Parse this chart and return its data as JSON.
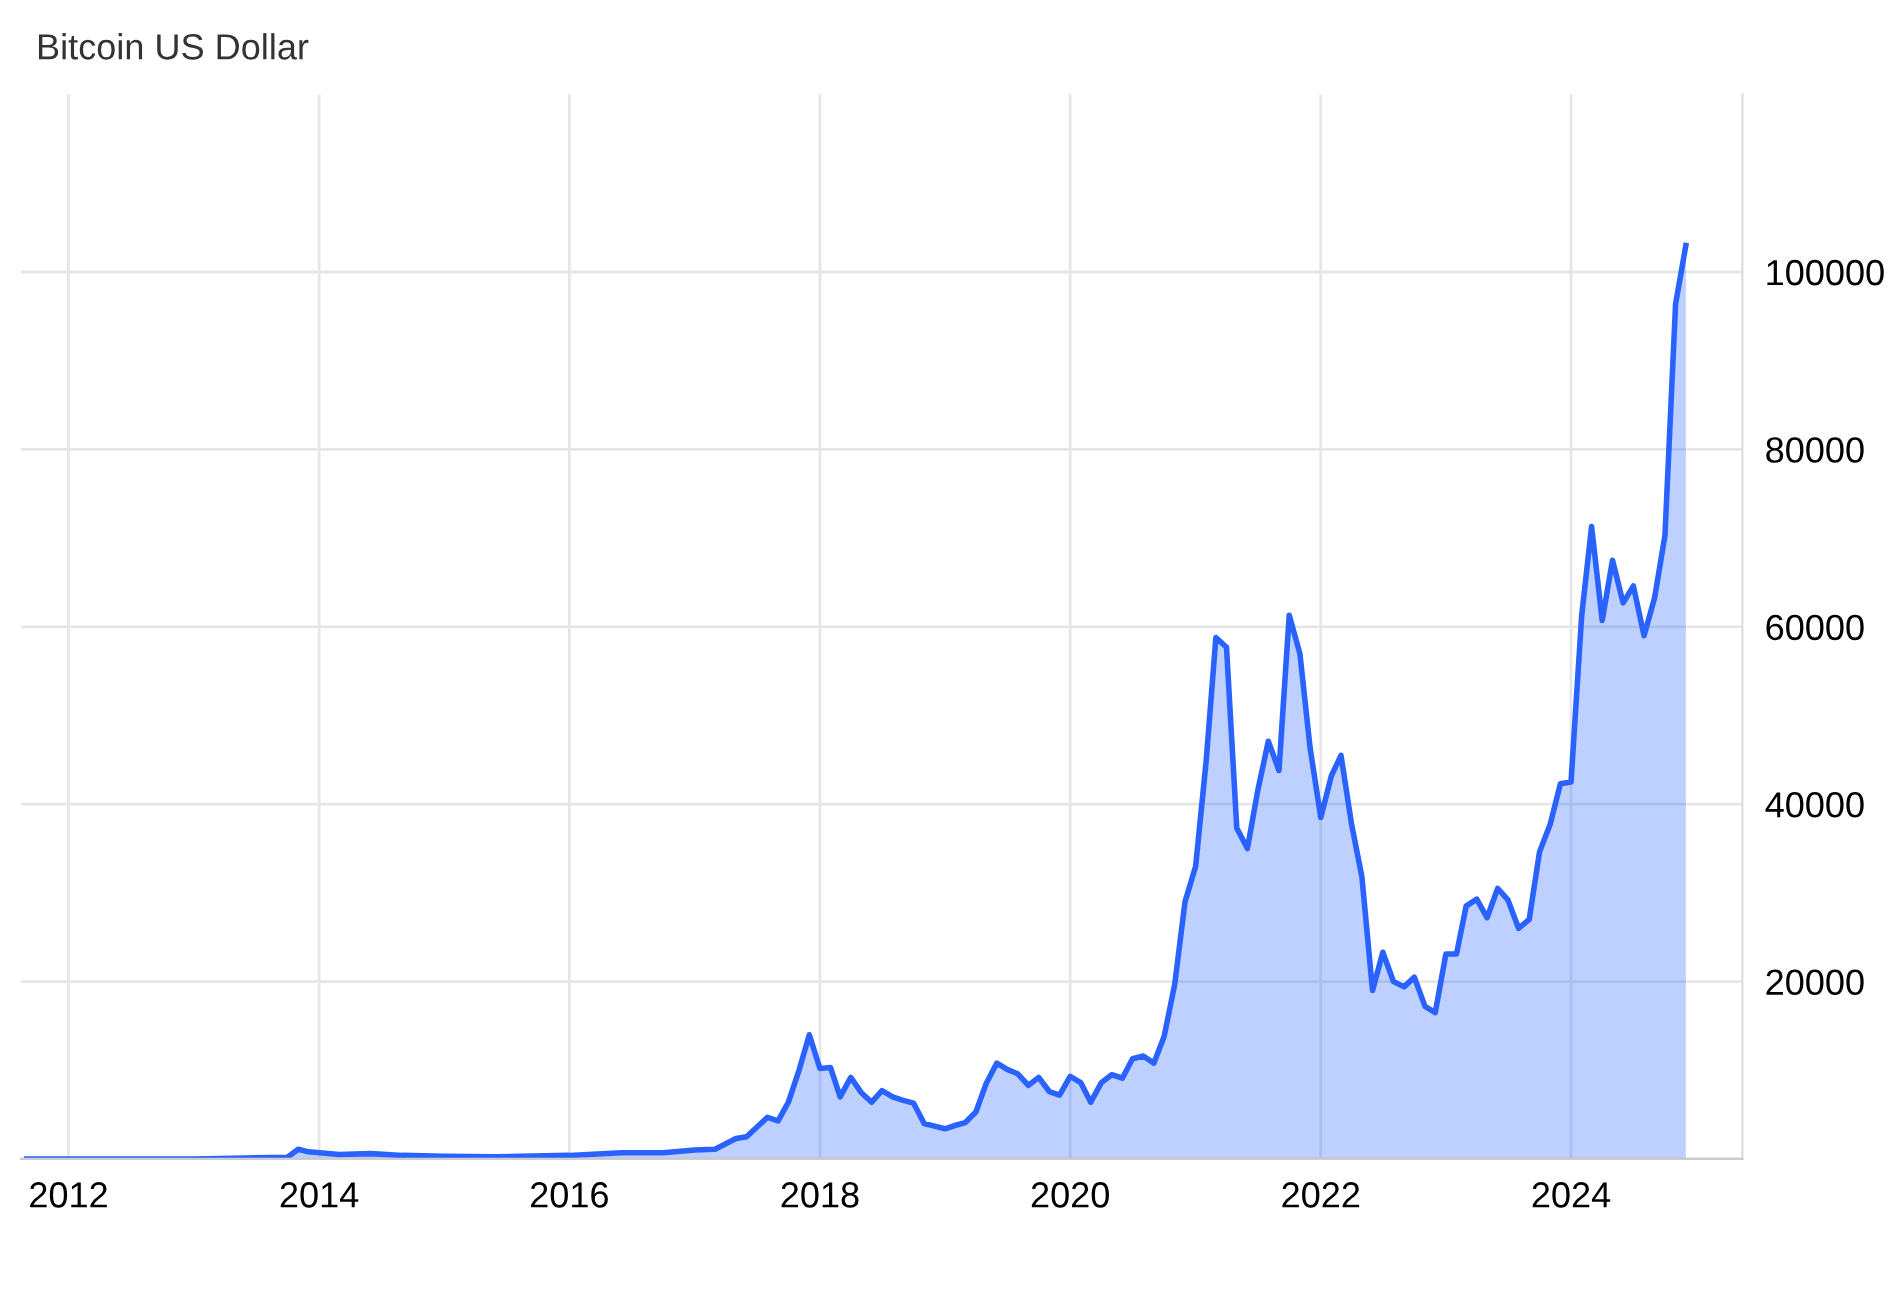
{
  "chart_data": {
    "type": "area",
    "title": "Bitcoin US Dollar",
    "x": [
      "2011-09",
      "2012-01",
      "2012-06",
      "2013-01",
      "2013-06",
      "2013-10",
      "2013-11",
      "2013-12",
      "2014-03",
      "2014-06",
      "2014-09",
      "2015-01",
      "2015-06",
      "2016-01",
      "2016-06",
      "2016-10",
      "2017-01",
      "2017-03",
      "2017-05",
      "2017-06",
      "2017-08",
      "2017-09",
      "2017-10",
      "2017-11",
      "2017-12",
      "2018-01",
      "2018-02",
      "2018-03",
      "2018-04",
      "2018-05",
      "2018-06",
      "2018-07",
      "2018-08",
      "2018-09",
      "2018-10",
      "2018-11",
      "2018-12",
      "2019-01",
      "2019-02",
      "2019-03",
      "2019-04",
      "2019-05",
      "2019-06",
      "2019-07",
      "2019-08",
      "2019-09",
      "2019-10",
      "2019-11",
      "2019-12",
      "2020-01",
      "2020-02",
      "2020-03",
      "2020-04",
      "2020-05",
      "2020-06",
      "2020-07",
      "2020-08",
      "2020-09",
      "2020-10",
      "2020-11",
      "2020-12",
      "2021-01",
      "2021-02",
      "2021-03",
      "2021-04",
      "2021-05",
      "2021-06",
      "2021-07",
      "2021-08",
      "2021-09",
      "2021-10",
      "2021-11",
      "2021-12",
      "2022-01",
      "2022-02",
      "2022-03",
      "2022-04",
      "2022-05",
      "2022-06",
      "2022-07",
      "2022-08",
      "2022-09",
      "2022-10",
      "2022-11",
      "2022-12",
      "2023-01",
      "2023-02",
      "2023-03",
      "2023-04",
      "2023-05",
      "2023-06",
      "2023-07",
      "2023-08",
      "2023-09",
      "2023-10",
      "2023-11",
      "2023-12",
      "2024-01",
      "2024-02",
      "2024-03",
      "2024-04",
      "2024-05",
      "2024-06",
      "2024-07",
      "2024-08",
      "2024-09",
      "2024-10",
      "2024-11",
      "2024-12"
    ],
    "series": [
      {
        "color": "#2962ff",
        "values": [
          0,
          0,
          0,
          0,
          100,
          200,
          1100,
          800,
          500,
          600,
          400,
          300,
          250,
          400,
          700,
          700,
          1000,
          1100,
          2300,
          2500,
          4700,
          4300,
          6400,
          10000,
          14000,
          10200,
          10300,
          7000,
          9200,
          7500,
          6400,
          7700,
          7000,
          6600,
          6300,
          4000,
          3700,
          3400,
          3800,
          4100,
          5300,
          8500,
          10800,
          10100,
          9600,
          8300,
          9200,
          7600,
          7200,
          9300,
          8600,
          6400,
          8600,
          9500,
          9100,
          11300,
          11600,
          10800,
          13800,
          19700,
          29000,
          33000,
          45000,
          58800,
          57700,
          37300,
          35000,
          41500,
          47100,
          43800,
          61300,
          57000,
          46300,
          38500,
          43200,
          45500,
          37700,
          31800,
          19000,
          23300,
          20000,
          19400,
          20500,
          17200,
          16500,
          23100,
          23100,
          28500,
          29300,
          27200,
          30500,
          29200,
          26000,
          27000,
          34600,
          37700,
          42300,
          42500,
          61200,
          71300,
          60700,
          67500,
          62700,
          64600,
          59000,
          63300,
          70300,
          96400,
          103000
        ]
      }
    ],
    "xlim": [
      "2011-08-15",
      "2025-05-15"
    ],
    "xticks": [
      {
        "value": "2012-01-01",
        "label": "2012"
      },
      {
        "value": "2014-01-01",
        "label": "2014"
      },
      {
        "value": "2016-01-01",
        "label": "2016"
      },
      {
        "value": "2018-01-01",
        "label": "2018"
      },
      {
        "value": "2020-01-01",
        "label": "2020"
      },
      {
        "value": "2022-01-01",
        "label": "2022"
      },
      {
        "value": "2024-01-01",
        "label": "2024"
      }
    ],
    "ylim": [
      0,
      120000
    ],
    "yticks": [
      {
        "value": 0,
        "label": null
      },
      20000,
      40000,
      60000,
      80000,
      100000
    ],
    "grid": true
  }
}
